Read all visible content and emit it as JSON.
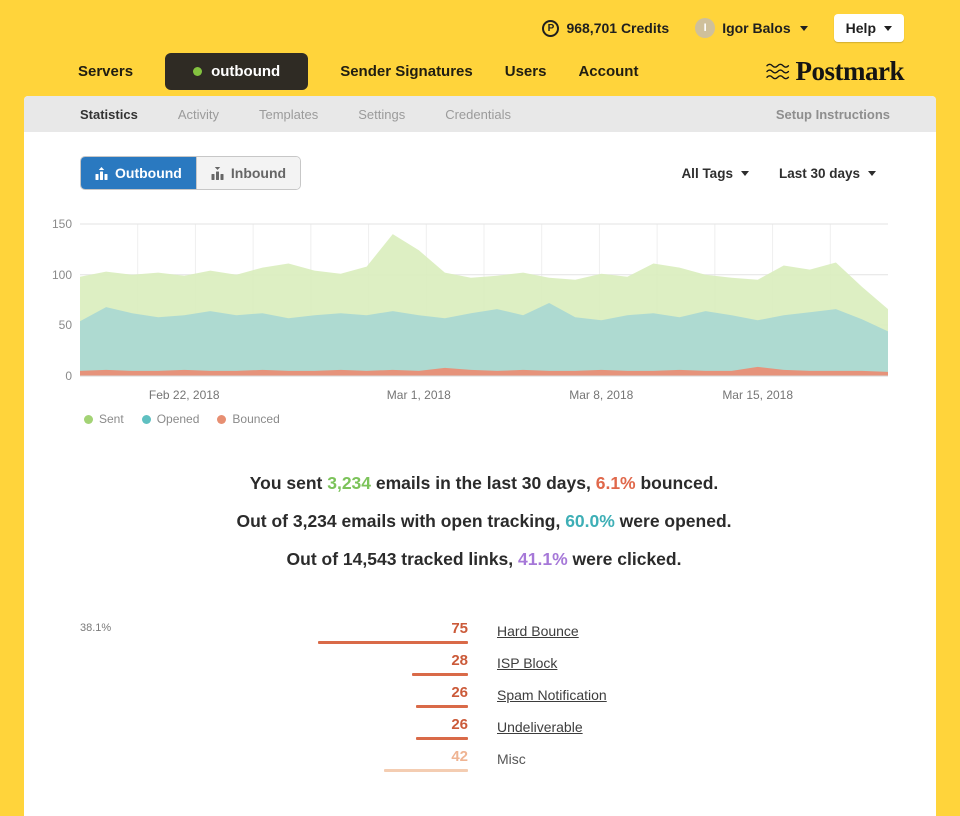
{
  "colors": {
    "sent": "#7cc35a",
    "bounced": "#e0684b",
    "opened": "#3eafb6",
    "clicked": "#a678d8",
    "brand_yellow": "#ffd43b",
    "primary_blue": "#2a79c0",
    "server_status_green": "#83c23f"
  },
  "topbar": {
    "credits_icon": "P",
    "credits_label": "968,701 Credits",
    "user_initial": "I",
    "user_name": "Igor Balos",
    "help_label": "Help"
  },
  "nav": {
    "items": [
      {
        "label": "Servers"
      },
      {
        "label": "outbound"
      },
      {
        "label": "Sender Signatures"
      },
      {
        "label": "Users"
      },
      {
        "label": "Account"
      }
    ],
    "active_server": "outbound",
    "logo_text": "Postmark"
  },
  "subnav": {
    "items": [
      {
        "label": "Statistics",
        "active": true
      },
      {
        "label": "Activity",
        "active": false
      },
      {
        "label": "Templates",
        "active": false
      },
      {
        "label": "Settings",
        "active": false
      },
      {
        "label": "Credentials",
        "active": false
      }
    ],
    "right_link": "Setup Instructions"
  },
  "filters": {
    "direction_toggle": [
      {
        "label": "Outbound",
        "active": true
      },
      {
        "label": "Inbound",
        "active": false
      }
    ],
    "tags_dropdown_value": "All Tags",
    "date_range_dropdown_value": "Last 30 days"
  },
  "chart_data": {
    "type": "area",
    "title": "",
    "xlabel": "",
    "ylabel": "",
    "ylim": [
      0,
      150
    ],
    "y_ticks": [
      0,
      50,
      100,
      150
    ],
    "grid": true,
    "legend_position": "bottom-left",
    "x_tick_labels": [
      "Feb 22, 2018",
      "Mar 1, 2018",
      "Mar 8, 2018",
      "Mar 15, 2018"
    ],
    "x_tick_indices": [
      4,
      13,
      20,
      26
    ],
    "series": [
      {
        "name": "Sent",
        "fill": "#d9edbc",
        "dot": "#a3d375",
        "opacity": 0.9,
        "values": [
          98,
          103,
          100,
          102,
          99,
          104,
          100,
          107,
          111,
          104,
          101,
          108,
          140,
          124,
          102,
          97,
          99,
          102,
          97,
          95,
          101,
          98,
          111,
          107,
          100,
          97,
          95,
          109,
          105,
          112,
          88,
          66
        ]
      },
      {
        "name": "Opened",
        "fill": "#a9d8d2",
        "dot": "#5fc0c1",
        "opacity": 0.92,
        "values": [
          54,
          68,
          62,
          58,
          60,
          64,
          60,
          62,
          57,
          60,
          62,
          60,
          64,
          60,
          57,
          62,
          66,
          60,
          72,
          58,
          55,
          60,
          62,
          58,
          64,
          60,
          55,
          60,
          63,
          66,
          56,
          44
        ]
      },
      {
        "name": "Bounced",
        "fill": "#e6937b",
        "dot": "#e78f72",
        "opacity": 1,
        "values": [
          5,
          6,
          5,
          5,
          6,
          5,
          5,
          6,
          5,
          5,
          6,
          5,
          6,
          5,
          8,
          6,
          5,
          6,
          5,
          5,
          6,
          5,
          5,
          6,
          5,
          5,
          9,
          6,
          5,
          5,
          5,
          4
        ]
      }
    ]
  },
  "summary": {
    "lines": [
      {
        "parts": [
          {
            "text": "You sent "
          },
          {
            "text": "3,234",
            "color": "sent"
          },
          {
            "text": " emails in the last 30 days, "
          },
          {
            "text": "6.1%",
            "color": "bounced"
          },
          {
            "text": " bounced."
          }
        ]
      },
      {
        "parts": [
          {
            "text": "Out of 3,234 emails with open tracking, "
          },
          {
            "text": "60.0%",
            "color": "opened"
          },
          {
            "text": " were opened."
          }
        ]
      },
      {
        "parts": [
          {
            "text": "Out of 14,543 tracked links, "
          },
          {
            "text": "41.1%",
            "color": "clicked"
          },
          {
            "text": " were clicked."
          }
        ]
      }
    ]
  },
  "bounce_breakdown": {
    "hover_percent": "38.1%",
    "bar_color": "#d96a48",
    "muted_bar_color": "#f4cdb2",
    "value_color": "#cb5a39",
    "muted_value_color": "#efb493",
    "rows": [
      {
        "value": 75,
        "label": "Hard Bounce",
        "link": true,
        "muted": false
      },
      {
        "value": 28,
        "label": "ISP Block",
        "link": true,
        "muted": false
      },
      {
        "value": 26,
        "label": "Spam Notification",
        "link": true,
        "muted": false
      },
      {
        "value": 26,
        "label": "Undeliverable",
        "link": true,
        "muted": false
      },
      {
        "value": 42,
        "label": "Misc",
        "link": false,
        "muted": true
      }
    ]
  }
}
